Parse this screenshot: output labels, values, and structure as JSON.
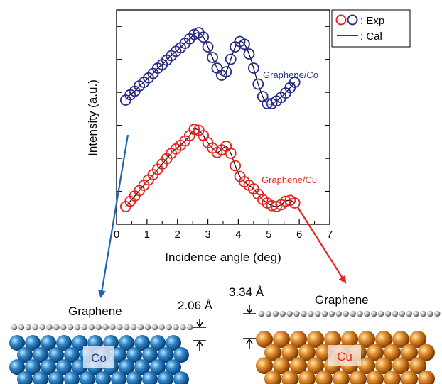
{
  "chart_data": {
    "type": "scatter",
    "xlabel": "Incidence angle (deg)",
    "ylabel": "Intensity (a.u.)",
    "xlim": [
      0,
      7
    ],
    "xticks": [
      "0",
      "1",
      "2",
      "3",
      "4",
      "5",
      "6",
      "7"
    ],
    "ylim": [
      0,
      1
    ],
    "grid": false,
    "legend_placement": "top-right",
    "legend": [
      {
        "label": ": Exp",
        "kind": "open-circles",
        "colors": [
          "#e8231f",
          "#2a2d8f"
        ]
      },
      {
        "label": ": Cal",
        "kind": "line",
        "color": "#000000"
      }
    ],
    "series": [
      {
        "name": "Graphene/Co",
        "color": "#2a2d8f",
        "x": [
          0.3,
          0.45,
          0.6,
          0.75,
          0.9,
          1.05,
          1.2,
          1.35,
          1.5,
          1.65,
          1.8,
          1.95,
          2.1,
          2.25,
          2.4,
          2.55,
          2.7,
          2.85,
          3.0,
          3.15,
          3.3,
          3.45,
          3.6,
          3.75,
          3.9,
          4.05,
          4.2,
          4.35,
          4.5,
          4.65,
          4.8,
          4.95,
          5.1,
          5.25,
          5.4,
          5.55,
          5.7,
          5.85
        ],
        "y": [
          0.62,
          0.65,
          0.67,
          0.7,
          0.72,
          0.745,
          0.77,
          0.8,
          0.82,
          0.845,
          0.87,
          0.895,
          0.915,
          0.94,
          0.965,
          0.99,
          1.0,
          0.975,
          0.92,
          0.86,
          0.8,
          0.76,
          0.78,
          0.85,
          0.92,
          0.95,
          0.935,
          0.88,
          0.8,
          0.71,
          0.64,
          0.6,
          0.6,
          0.615,
          0.635,
          0.66,
          0.69,
          0.72
        ]
      },
      {
        "name": "Graphene/Cu",
        "color": "#e8231f",
        "x": [
          0.3,
          0.45,
          0.6,
          0.75,
          0.9,
          1.05,
          1.2,
          1.35,
          1.5,
          1.65,
          1.8,
          1.95,
          2.1,
          2.25,
          2.4,
          2.55,
          2.7,
          2.85,
          3.0,
          3.15,
          3.3,
          3.45,
          3.6,
          3.75,
          3.9,
          4.05,
          4.2,
          4.35,
          4.5,
          4.65,
          4.8,
          4.95,
          5.1,
          5.25,
          5.4,
          5.55,
          5.7,
          5.85
        ],
        "y": [
          0.02,
          0.05,
          0.08,
          0.11,
          0.14,
          0.17,
          0.2,
          0.23,
          0.26,
          0.29,
          0.32,
          0.345,
          0.365,
          0.39,
          0.42,
          0.455,
          0.45,
          0.42,
          0.38,
          0.35,
          0.325,
          0.34,
          0.36,
          0.32,
          0.25,
          0.19,
          0.16,
          0.14,
          0.12,
          0.09,
          0.06,
          0.04,
          0.025,
          0.02,
          0.03,
          0.05,
          0.055,
          0.04
        ]
      }
    ]
  },
  "diagram": {
    "co": {
      "top_label": "Graphene",
      "metal_label": "Co",
      "distance": "2.06 Å",
      "sphere_color": "#2e86c8"
    },
    "cu": {
      "top_label": "Graphene",
      "metal_label": "Cu",
      "distance": "3.34 Å",
      "sphere_color": "#e08a2a"
    }
  }
}
